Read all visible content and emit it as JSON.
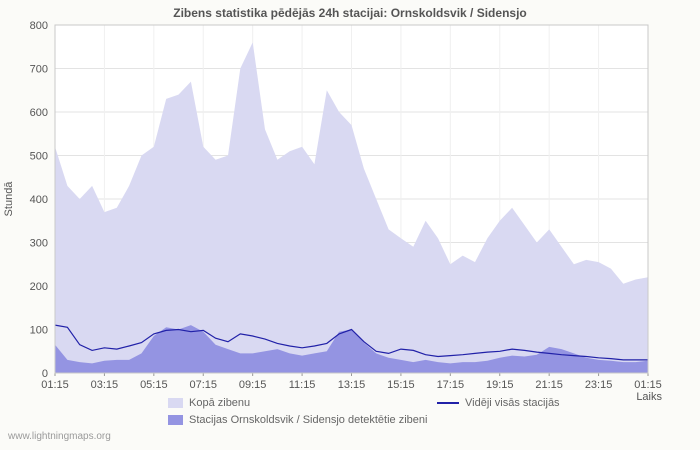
{
  "watermark": "www.lightningmaps.org",
  "chart_data": {
    "type": "area",
    "title": "Zibens statistika pēdējās 24h stacijai: Ornskoldsvik / Sidensjo",
    "xlabel": "Laiks",
    "ylabel": "Stundā",
    "ylim": [
      0,
      800
    ],
    "y_tick_step": 100,
    "grid": true,
    "legend_position": "bottom",
    "x_tick_every": 4,
    "x_tick_labels": [
      "01:15",
      "03:15",
      "05:15",
      "07:15",
      "09:15",
      "11:15",
      "13:15",
      "15:15",
      "17:15",
      "19:15",
      "21:15",
      "23:15",
      "01:15"
    ],
    "x": [
      "01:15",
      "01:45",
      "02:15",
      "02:45",
      "03:15",
      "03:45",
      "04:15",
      "04:45",
      "05:15",
      "05:45",
      "06:15",
      "06:45",
      "07:15",
      "07:45",
      "08:15",
      "08:45",
      "09:15",
      "09:45",
      "10:15",
      "10:45",
      "11:15",
      "11:45",
      "12:15",
      "12:45",
      "13:15",
      "13:45",
      "14:15",
      "14:45",
      "15:15",
      "15:45",
      "16:15",
      "16:45",
      "17:15",
      "17:45",
      "18:15",
      "18:45",
      "19:15",
      "19:45",
      "20:15",
      "20:45",
      "21:15",
      "21:45",
      "22:15",
      "22:45",
      "23:15",
      "23:45",
      "00:15",
      "00:45",
      "01:15"
    ],
    "series": [
      {
        "name": "Kopā zibenu",
        "type": "area",
        "color": "#d9d9f2",
        "values": [
          520,
          430,
          400,
          430,
          370,
          380,
          430,
          500,
          520,
          630,
          640,
          670,
          520,
          490,
          500,
          700,
          760,
          560,
          490,
          510,
          520,
          480,
          650,
          600,
          570,
          470,
          400,
          330,
          310,
          290,
          350,
          310,
          250,
          270,
          255,
          310,
          350,
          380,
          340,
          300,
          330,
          290,
          250,
          260,
          255,
          240,
          205,
          215,
          220
        ]
      },
      {
        "name": "Stacijas Ornskoldsvik / Sidensjo detektētie zibeni",
        "type": "area",
        "color": "#9494e2",
        "values": [
          65,
          30,
          25,
          22,
          28,
          30,
          30,
          45,
          85,
          105,
          100,
          110,
          95,
          65,
          55,
          45,
          45,
          50,
          55,
          45,
          40,
          45,
          50,
          95,
          100,
          70,
          45,
          35,
          30,
          25,
          30,
          25,
          22,
          25,
          25,
          28,
          35,
          40,
          38,
          42,
          60,
          55,
          45,
          35,
          30,
          28,
          25,
          25,
          28
        ]
      },
      {
        "name": "Vidēji visās stacijās",
        "type": "line",
        "color": "#2121a8",
        "values": [
          110,
          105,
          65,
          52,
          58,
          55,
          62,
          70,
          90,
          98,
          100,
          95,
          98,
          80,
          72,
          90,
          85,
          78,
          68,
          62,
          58,
          62,
          68,
          90,
          100,
          72,
          50,
          45,
          55,
          52,
          42,
          38,
          40,
          42,
          45,
          48,
          50,
          55,
          52,
          48,
          45,
          42,
          40,
          38,
          35,
          33,
          30,
          30,
          30
        ]
      }
    ]
  }
}
